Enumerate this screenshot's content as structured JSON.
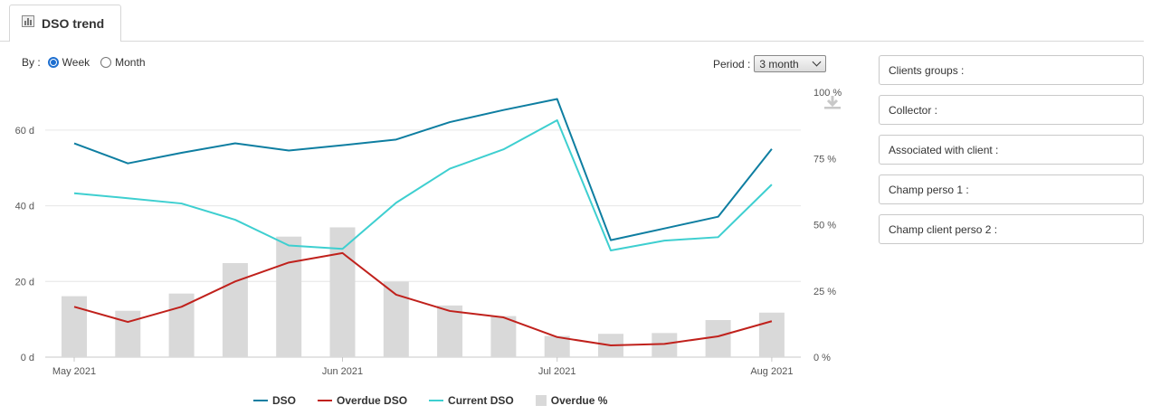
{
  "tab": {
    "title": "DSO trend"
  },
  "by": {
    "label": "By :",
    "options": [
      {
        "label": "Week",
        "checked": true
      },
      {
        "label": "Month",
        "checked": false
      }
    ]
  },
  "period": {
    "label": "Period :",
    "value": "3 month"
  },
  "filters": [
    "Clients groups :",
    "Collector :",
    "Associated with client :",
    "Champ perso 1 :",
    "Champ client perso 2 :"
  ],
  "legend": {
    "dso": "DSO",
    "overdue_dso": "Overdue DSO",
    "current_dso": "Current DSO",
    "overdue_pct": "Overdue %"
  },
  "colors": {
    "dso": "#0e7ea1",
    "overdue_dso": "#c0211c",
    "current_dso": "#3ecfd0",
    "overdue_pct": "#d9d9d9"
  },
  "chart_data": {
    "type": "line",
    "x": [
      "2021-05-03",
      "2021-05-10",
      "2021-05-17",
      "2021-05-24",
      "2021-05-31",
      "2021-06-07",
      "2021-06-14",
      "2021-06-21",
      "2021-06-28",
      "2021-07-05",
      "2021-07-12",
      "2021-07-19",
      "2021-07-26",
      "2021-08-02"
    ],
    "x_tick_labels": [
      "May 2021",
      "Jun 2021",
      "Jul 2021",
      "Aug 2021"
    ],
    "y_left": {
      "ylim": [
        0,
        70
      ],
      "tick_labels": [
        "0 d",
        "20 d",
        "40 d",
        "60 d"
      ]
    },
    "y_right": {
      "ylim": [
        0,
        100
      ],
      "tick_labels": [
        "0 %",
        "25 %",
        "50 %",
        "75 %",
        "100 %"
      ]
    },
    "grid": true,
    "legend_position": "bottom",
    "series": [
      {
        "name": "DSO",
        "type": "line",
        "axis": "left",
        "values": [
          56.5,
          51.2,
          54,
          56.5,
          54.6,
          56,
          57.5,
          62.1,
          65.3,
          68.2,
          30.9,
          34,
          37.1,
          55
        ]
      },
      {
        "name": "Overdue DSO",
        "type": "line",
        "axis": "left",
        "values": [
          13.3,
          9.3,
          13.3,
          20,
          25,
          27.5,
          16.5,
          12.2,
          10.5,
          5.3,
          3.1,
          3.5,
          5.5,
          9.5
        ]
      },
      {
        "name": "Current DSO",
        "type": "line",
        "axis": "left",
        "values": [
          43.3,
          42,
          40.6,
          36.3,
          29.5,
          28.6,
          40.8,
          49.8,
          54.9,
          62.6,
          28.2,
          30.8,
          31.7,
          45.6
        ]
      },
      {
        "name": "Overdue %",
        "type": "bar",
        "axis": "right",
        "values": [
          23,
          17.5,
          24,
          35.5,
          45.5,
          49,
          28.5,
          19.5,
          15.5,
          8,
          8.8,
          9.1,
          14,
          16.8
        ]
      }
    ]
  }
}
